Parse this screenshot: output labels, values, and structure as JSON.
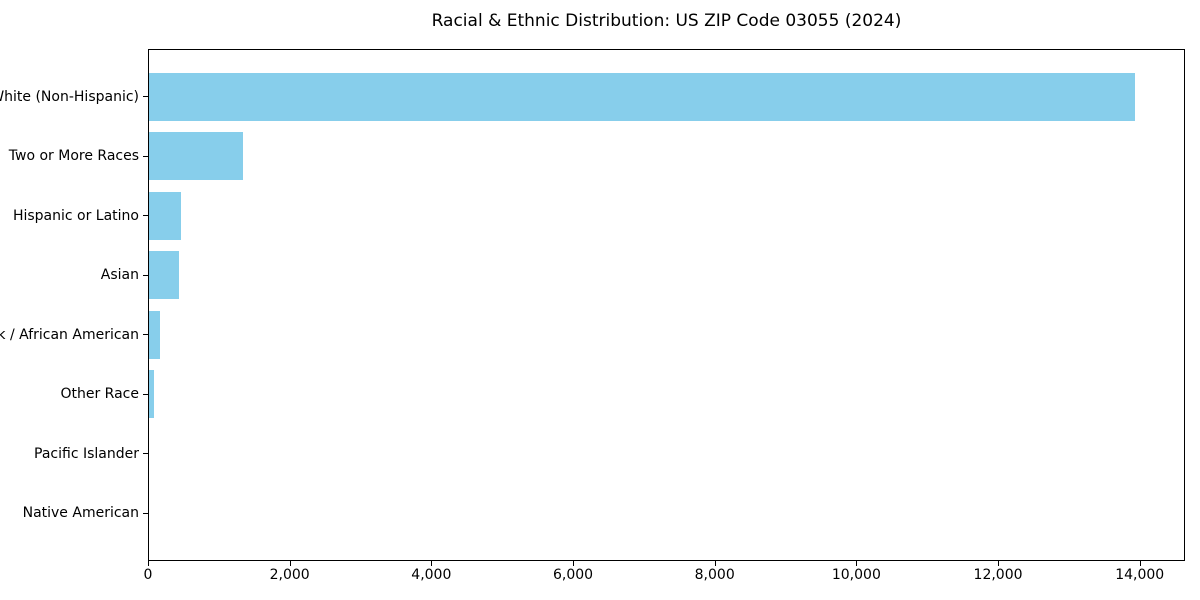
{
  "title": "Racial & Ethnic Distribution: US ZIP Code 03055 (2024)",
  "chart_data": {
    "type": "bar",
    "orientation": "horizontal",
    "title": "Racial & Ethnic Distribution: US ZIP Code 03055 (2024)",
    "categories": [
      "White (Non-Hispanic)",
      "Two or More Races",
      "Hispanic or Latino",
      "Asian",
      "Black / African American",
      "Other Race",
      "Pacific Islander",
      "Native American"
    ],
    "values": [
      13915,
      1330,
      455,
      425,
      160,
      75,
      0,
      0
    ],
    "bar_color": "#87CEEB",
    "xlabel": "",
    "ylabel": "",
    "xlim": [
      0,
      14611
    ],
    "grid": false,
    "legend_position": "none",
    "x_ticks": [
      {
        "value": 0,
        "label": "0"
      },
      {
        "value": 2000,
        "label": "2,000"
      },
      {
        "value": 4000,
        "label": "4,000"
      },
      {
        "value": 6000,
        "label": "6,000"
      },
      {
        "value": 8000,
        "label": "8,000"
      },
      {
        "value": 10000,
        "label": "10,000"
      },
      {
        "value": 12000,
        "label": "12,000"
      },
      {
        "value": 14000,
        "label": "14,000"
      }
    ]
  }
}
